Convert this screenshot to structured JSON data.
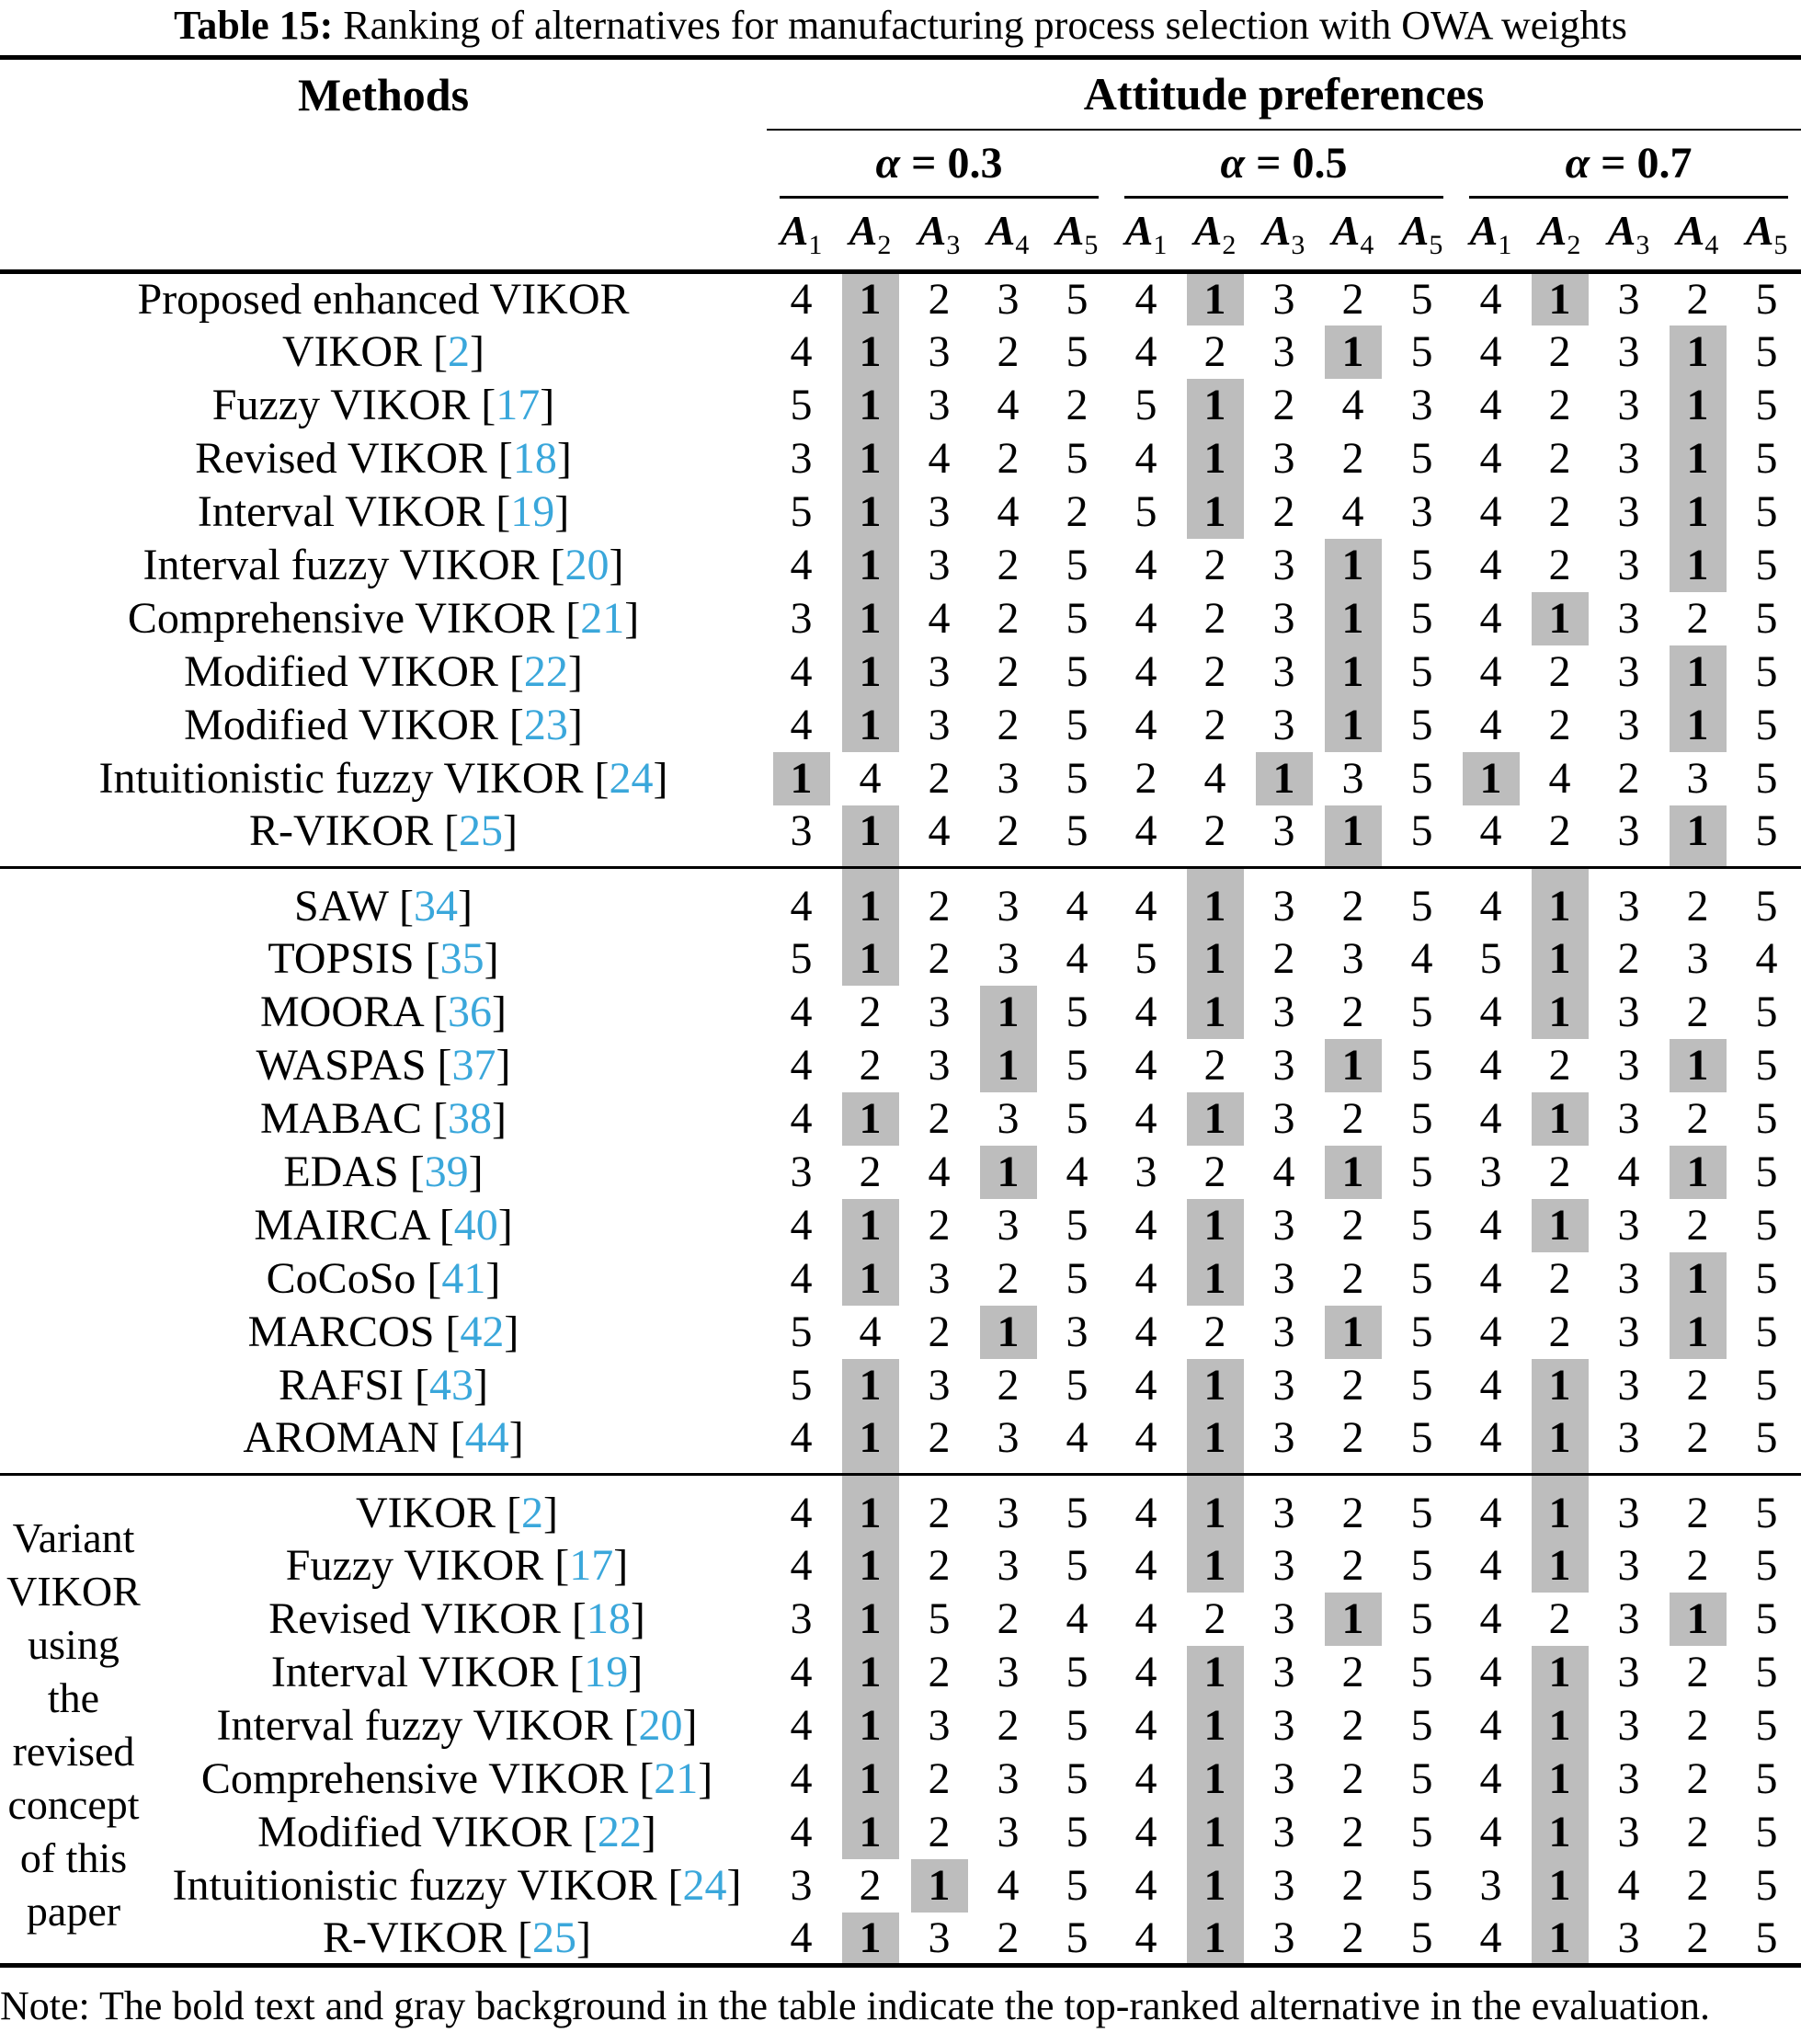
{
  "title": {
    "prefix": "Table 15:",
    "rest": " Ranking of alternatives for manufacturing process selection with OWA weights"
  },
  "header": {
    "methods": "Methods",
    "attitude": "Attitude preferences",
    "alpha_groups": [
      "α = 0.3",
      "α = 0.5",
      "α = 0.7"
    ],
    "alternative_base": "A",
    "alternative_subscripts": [
      "1",
      "2",
      "3",
      "4",
      "5"
    ]
  },
  "side_label_lines": [
    "Variant",
    "VIKOR",
    "using the",
    "revised",
    "concept",
    "of this",
    "paper"
  ],
  "colors": {
    "citation_blue": "#3aa7db",
    "highlight_gray": "#bdbdbd"
  },
  "sections": [
    {
      "rows": [
        {
          "method": "Proposed enhanced VIKOR",
          "cite": null,
          "values": [
            4,
            1,
            2,
            3,
            5,
            4,
            1,
            3,
            2,
            5,
            4,
            1,
            3,
            2,
            5
          ],
          "highlight": [
            1,
            6,
            11
          ]
        },
        {
          "method": "VIKOR",
          "cite": "2",
          "values": [
            4,
            1,
            3,
            2,
            5,
            4,
            2,
            3,
            1,
            5,
            4,
            2,
            3,
            1,
            5
          ],
          "highlight": [
            1,
            8,
            13
          ]
        },
        {
          "method": "Fuzzy VIKOR",
          "cite": "17",
          "values": [
            5,
            1,
            3,
            4,
            2,
            5,
            1,
            2,
            4,
            3,
            4,
            2,
            3,
            1,
            5
          ],
          "highlight": [
            1,
            6,
            13
          ]
        },
        {
          "method": "Revised VIKOR",
          "cite": "18",
          "values": [
            3,
            1,
            4,
            2,
            5,
            4,
            1,
            3,
            2,
            5,
            4,
            2,
            3,
            1,
            5
          ],
          "highlight": [
            1,
            6,
            13
          ]
        },
        {
          "method": "Interval VIKOR",
          "cite": "19",
          "values": [
            5,
            1,
            3,
            4,
            2,
            5,
            1,
            2,
            4,
            3,
            4,
            2,
            3,
            1,
            5
          ],
          "highlight": [
            1,
            6,
            13
          ]
        },
        {
          "method": "Interval fuzzy VIKOR",
          "cite": "20",
          "values": [
            4,
            1,
            3,
            2,
            5,
            4,
            2,
            3,
            1,
            5,
            4,
            2,
            3,
            1,
            5
          ],
          "highlight": [
            1,
            8,
            13
          ]
        },
        {
          "method": "Comprehensive VIKOR",
          "cite": "21",
          "values": [
            3,
            1,
            4,
            2,
            5,
            4,
            2,
            3,
            1,
            5,
            4,
            1,
            3,
            2,
            5
          ],
          "highlight": [
            1,
            8,
            11
          ]
        },
        {
          "method": "Modified VIKOR",
          "cite": "22",
          "values": [
            4,
            1,
            3,
            2,
            5,
            4,
            2,
            3,
            1,
            5,
            4,
            2,
            3,
            1,
            5
          ],
          "highlight": [
            1,
            8,
            13
          ]
        },
        {
          "method": "Modified VIKOR",
          "cite": "23",
          "values": [
            4,
            1,
            3,
            2,
            5,
            4,
            2,
            3,
            1,
            5,
            4,
            2,
            3,
            1,
            5
          ],
          "highlight": [
            1,
            8,
            13
          ]
        },
        {
          "method": "Intuitionistic fuzzy VIKOR",
          "cite": "24",
          "values": [
            1,
            4,
            2,
            3,
            5,
            2,
            4,
            1,
            3,
            5,
            1,
            4,
            2,
            3,
            5
          ],
          "highlight": [
            0,
            7,
            10
          ]
        },
        {
          "method": "R-VIKOR",
          "cite": "25",
          "values": [
            3,
            1,
            4,
            2,
            5,
            4,
            2,
            3,
            1,
            5,
            4,
            2,
            3,
            1,
            5
          ],
          "highlight": [
            1,
            8,
            13
          ]
        }
      ]
    },
    {
      "rows": [
        {
          "method": "SAW",
          "cite": "34",
          "values": [
            4,
            1,
            2,
            3,
            4,
            4,
            1,
            3,
            2,
            5,
            4,
            1,
            3,
            2,
            5
          ],
          "highlight": [
            1,
            6,
            11
          ]
        },
        {
          "method": "TOPSIS",
          "cite": "35",
          "values": [
            5,
            1,
            2,
            3,
            4,
            5,
            1,
            2,
            3,
            4,
            5,
            1,
            2,
            3,
            4
          ],
          "highlight": [
            1,
            6,
            11
          ]
        },
        {
          "method": "MOORA",
          "cite": "36",
          "values": [
            4,
            2,
            3,
            1,
            5,
            4,
            1,
            3,
            2,
            5,
            4,
            1,
            3,
            2,
            5
          ],
          "highlight": [
            3,
            6,
            11
          ]
        },
        {
          "method": "WASPAS",
          "cite": "37",
          "values": [
            4,
            2,
            3,
            1,
            5,
            4,
            2,
            3,
            1,
            5,
            4,
            2,
            3,
            1,
            5
          ],
          "highlight": [
            3,
            8,
            13
          ]
        },
        {
          "method": "MABAC",
          "cite": "38",
          "values": [
            4,
            1,
            2,
            3,
            5,
            4,
            1,
            3,
            2,
            5,
            4,
            1,
            3,
            2,
            5
          ],
          "highlight": [
            1,
            6,
            11
          ]
        },
        {
          "method": "EDAS",
          "cite": "39",
          "values": [
            3,
            2,
            4,
            1,
            4,
            3,
            2,
            4,
            1,
            5,
            3,
            2,
            4,
            1,
            5
          ],
          "highlight": [
            3,
            8,
            13
          ]
        },
        {
          "method": "MAIRCA",
          "cite": "40",
          "values": [
            4,
            1,
            2,
            3,
            5,
            4,
            1,
            3,
            2,
            5,
            4,
            1,
            3,
            2,
            5
          ],
          "highlight": [
            1,
            6,
            11
          ]
        },
        {
          "method": "CoCoSo",
          "cite": "41",
          "values": [
            4,
            1,
            3,
            2,
            5,
            4,
            1,
            3,
            2,
            5,
            4,
            2,
            3,
            1,
            5
          ],
          "highlight": [
            1,
            6,
            13
          ]
        },
        {
          "method": "MARCOS",
          "cite": "42",
          "values": [
            5,
            4,
            2,
            1,
            3,
            4,
            2,
            3,
            1,
            5,
            4,
            2,
            3,
            1,
            5
          ],
          "highlight": [
            3,
            8,
            13
          ]
        },
        {
          "method": "RAFSI",
          "cite": "43",
          "values": [
            5,
            1,
            3,
            2,
            5,
            4,
            1,
            3,
            2,
            5,
            4,
            1,
            3,
            2,
            5
          ],
          "highlight": [
            1,
            6,
            11
          ]
        },
        {
          "method": "AROMAN",
          "cite": "44",
          "values": [
            4,
            1,
            2,
            3,
            4,
            4,
            1,
            3,
            2,
            5,
            4,
            1,
            3,
            2,
            5
          ],
          "highlight": [
            1,
            6,
            11
          ]
        }
      ]
    },
    {
      "rows": [
        {
          "method": "VIKOR",
          "cite": "2",
          "values": [
            4,
            1,
            2,
            3,
            5,
            4,
            1,
            3,
            2,
            5,
            4,
            1,
            3,
            2,
            5
          ],
          "highlight": [
            1,
            6,
            11
          ]
        },
        {
          "method": "Fuzzy VIKOR",
          "cite": "17",
          "values": [
            4,
            1,
            2,
            3,
            5,
            4,
            1,
            3,
            2,
            5,
            4,
            1,
            3,
            2,
            5
          ],
          "highlight": [
            1,
            6,
            11
          ]
        },
        {
          "method": "Revised VIKOR",
          "cite": "18",
          "values": [
            3,
            1,
            5,
            2,
            4,
            4,
            2,
            3,
            1,
            5,
            4,
            2,
            3,
            1,
            5
          ],
          "highlight": [
            1,
            8,
            13
          ]
        },
        {
          "method": "Interval VIKOR",
          "cite": "19",
          "values": [
            4,
            1,
            2,
            3,
            5,
            4,
            1,
            3,
            2,
            5,
            4,
            1,
            3,
            2,
            5
          ],
          "highlight": [
            1,
            6,
            11
          ]
        },
        {
          "method": "Interval fuzzy VIKOR",
          "cite": "20",
          "values": [
            4,
            1,
            3,
            2,
            5,
            4,
            1,
            3,
            2,
            5,
            4,
            1,
            3,
            2,
            5
          ],
          "highlight": [
            1,
            6,
            11
          ]
        },
        {
          "method": "Comprehensive VIKOR",
          "cite": "21",
          "values": [
            4,
            1,
            2,
            3,
            5,
            4,
            1,
            3,
            2,
            5,
            4,
            1,
            3,
            2,
            5
          ],
          "highlight": [
            1,
            6,
            11
          ]
        },
        {
          "method": "Modified VIKOR",
          "cite": "22",
          "values": [
            4,
            1,
            2,
            3,
            5,
            4,
            1,
            3,
            2,
            5,
            4,
            1,
            3,
            2,
            5
          ],
          "highlight": [
            1,
            6,
            11
          ]
        },
        {
          "method": "Intuitionistic fuzzy VIKOR",
          "cite": "24",
          "values": [
            3,
            2,
            1,
            4,
            5,
            4,
            1,
            3,
            2,
            5,
            3,
            1,
            4,
            2,
            5
          ],
          "highlight": [
            2,
            6,
            11
          ]
        },
        {
          "method": "R-VIKOR",
          "cite": "25",
          "values": [
            4,
            1,
            3,
            2,
            5,
            4,
            1,
            3,
            2,
            5,
            4,
            1,
            3,
            2,
            5
          ],
          "highlight": [
            1,
            6,
            11
          ]
        }
      ]
    }
  ],
  "note": "Note: The bold text and gray background in the table indicate the top-ranked alternative in the evaluation."
}
